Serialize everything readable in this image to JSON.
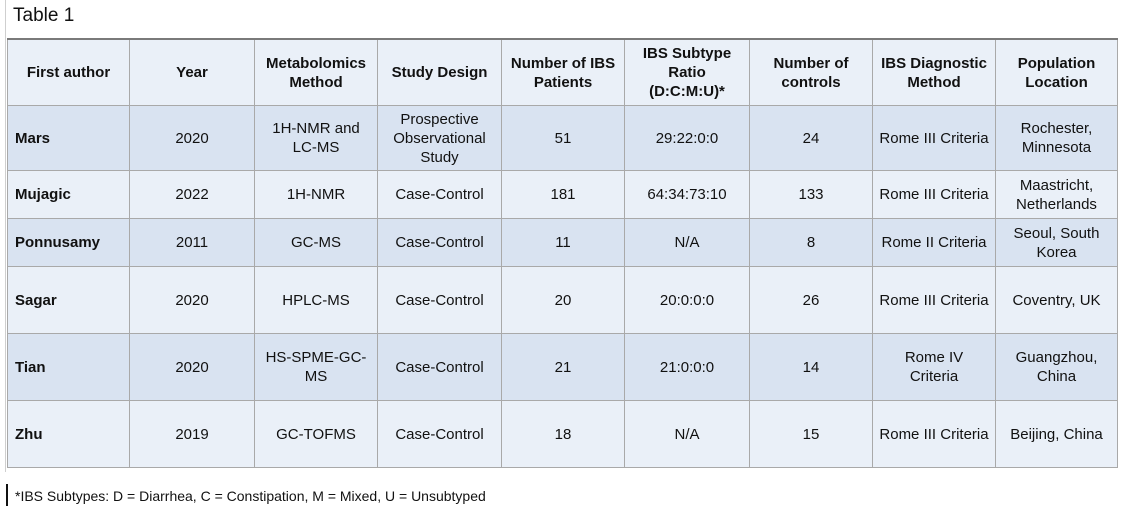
{
  "caption": "Table 1",
  "headers": [
    "First author",
    "Year",
    "Metabolomics Method",
    "Study Design",
    "Number of IBS Patients",
    "IBS Subtype Ratio (D:C:M:U)*",
    "Number of controls",
    "IBS Diagnostic Method",
    "Population Location"
  ],
  "rows": [
    {
      "author": "Mars",
      "year": "2020",
      "method": "1H-NMR and LC-MS",
      "design": "Prospective Observational Study",
      "patients": "51",
      "ratio": "29:22:0:0",
      "controls": "24",
      "diagnostic": "Rome III Criteria",
      "location": "Rochester, Minnesota"
    },
    {
      "author": "Mujagic",
      "year": "2022",
      "method": "1H-NMR",
      "design": "Case-Control",
      "patients": "181",
      "ratio": "64:34:73:10",
      "controls": "133",
      "diagnostic": "Rome III Criteria",
      "location": "Maastricht, Netherlands"
    },
    {
      "author": "Ponnusamy",
      "year": "2011",
      "method": "GC-MS",
      "design": "Case-Control",
      "patients": "11",
      "ratio": "N/A",
      "controls": "8",
      "diagnostic": "Rome II Criteria",
      "location": "Seoul, South Korea"
    },
    {
      "author": "Sagar",
      "year": "2020",
      "method": "HPLC-MS",
      "design": "Case-Control",
      "patients": "20",
      "ratio": "20:0:0:0",
      "controls": "26",
      "diagnostic": "Rome III Criteria",
      "location": "Coventry, UK"
    },
    {
      "author": "Tian",
      "year": "2020",
      "method": "HS-SPME-GC-MS",
      "design": "Case-Control",
      "patients": "21",
      "ratio": "21:0:0:0",
      "controls": "14",
      "diagnostic": "Rome IV Criteria",
      "location": "Guangzhou, China"
    },
    {
      "author": "Zhu",
      "year": "2019",
      "method": "GC-TOFMS",
      "design": "Case-Control",
      "patients": "18",
      "ratio": "N/A",
      "controls": "15",
      "diagnostic": "Rome III Criteria",
      "location": "Beijing, China"
    }
  ],
  "footnote": "*IBS Subtypes: D = Diarrhea, C = Constipation, M = Mixed, U = Unsubtyped"
}
